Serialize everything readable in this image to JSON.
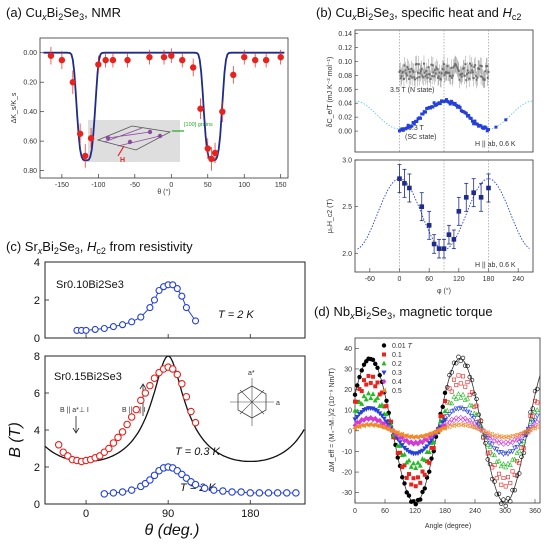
{
  "titles": {
    "a": {
      "pre": "(a) Cu",
      "sub": "x",
      "mid": "Bi",
      "sub2": "2",
      "mid2": "Se",
      "sub3": "3",
      "post": ", NMR"
    },
    "b": {
      "pre": "(b) Cu",
      "sub": "x",
      "mid": "Bi",
      "sub2": "2",
      "mid2": "Se",
      "sub3": "3",
      "post": ", specific heat and ",
      "it": "H",
      "sub4": "c2"
    },
    "c": {
      "pre": "(c) Sr",
      "sub": "x",
      "mid": "Bi",
      "sub2": "2",
      "mid2": "Se",
      "sub3": "3",
      "post": ", ",
      "it": "H",
      "sub4": "c2",
      "post2": " from resistivity"
    },
    "d": {
      "pre": "(d) Nb",
      "sub": "x",
      "mid": "Bi",
      "sub2": "2",
      "mid2": "Se",
      "sub3": "3",
      "post": ", magnetic torque"
    }
  },
  "annotations": {
    "a_ylabel": "ΔK_s/K_s",
    "a_xlabel": "θ (°)",
    "a_inset_label": "[100] grains",
    "a_inset_h": "H",
    "b1_ylabel": "δC_e/T (mJ K⁻² mol⁻¹)",
    "b1_ann_normal": "3.5 T (N state)",
    "b1_ann_sc1": "0.3 T",
    "b1_ann_sc2": "(SC state)",
    "b1_field": "H || ab, 0.6 K",
    "b2_ylabel": "μ₀H_c2 (T)",
    "b2_xlabel": "φ (°)",
    "b2_field": "H || ab, 0.6 K",
    "c1_sample": "Sr0.10Bi2Se3",
    "c1_temp": "T = 2 K",
    "c2_sample": "Sr0.15Bi2Se3",
    "c2_temp_red": "T = 0.3 K",
    "c2_temp_blue": "T = 2 K",
    "c2_perp": "B || a*⊥ I",
    "c2_par": "B || a|| I",
    "c2_astar": "a*",
    "c2_a": "a",
    "c_ylabel": "B (T)",
    "c_xlabel": "θ (deg.)",
    "d_ylabel": "ΔM_eff = (M₊−M₋)/2 (10⁻⁹ Nm/T)",
    "d_xlabel": "Angle (degree)",
    "d_legend_unit": "T"
  },
  "colors": {
    "red": "#e8221d",
    "navy": "#1e2b8a",
    "blue": "#2440d8",
    "gray": "#6b6b6b",
    "green": "#22bb22",
    "magenta": "#d23ad6",
    "orange": "#f08a28"
  },
  "chart_data": [
    {
      "id": "a",
      "type": "scatter",
      "xlabel": "θ (°)",
      "ylabel": "ΔK_s/K_s",
      "xlim": [
        -180,
        160
      ],
      "ylim": [
        0.85,
        -0.1
      ],
      "xticks": [
        -150,
        -100,
        -50,
        0,
        50,
        100,
        150
      ],
      "yticks": [
        0.0,
        0.2,
        0.4,
        0.6,
        0.8
      ],
      "ytick_labels": [
        "0.00",
        "0.20",
        "0.40",
        "0.60",
        "0.80"
      ],
      "points": {
        "x": [
          -165,
          -150,
          -135,
          -125,
          -118,
          -110,
          -100,
          -90,
          -80,
          -60,
          -30,
          -10,
          0,
          15,
          30,
          40,
          50,
          55,
          60,
          70,
          85,
          100,
          115,
          130,
          150
        ],
        "y": [
          0.02,
          0.05,
          0.2,
          0.55,
          0.7,
          0.58,
          0.08,
          0.05,
          0.05,
          0.05,
          0.03,
          0.03,
          0.02,
          0.05,
          0.1,
          0.38,
          0.65,
          0.72,
          0.68,
          0.4,
          0.15,
          0.03,
          0.05,
          0.05,
          0.03
        ],
        "err": [
          0.06,
          0.06,
          0.08,
          0.07,
          0.08,
          0.07,
          0.06,
          0.05,
          0.05,
          0.05,
          0.05,
          0.05,
          0.05,
          0.05,
          0.06,
          0.07,
          0.07,
          0.08,
          0.07,
          0.07,
          0.06,
          0.05,
          0.05,
          0.05,
          0.05
        ]
      },
      "fit_minima": [
        -117,
        57
      ],
      "fit_depth": 0.73
    },
    {
      "id": "b1",
      "type": "scatter",
      "ylabel": "δC_e/T (mJ K⁻² mol⁻¹)",
      "xlim": [
        -90,
        270
      ],
      "ylim": [
        -0.03,
        0.145
      ],
      "yticks": [
        0.0,
        0.02,
        0.04,
        0.06,
        0.08,
        0.1,
        0.12,
        0.14
      ],
      "series": [
        {
          "name": "3.5 T (N state)",
          "kind": "normal",
          "x_range": [
            0,
            180
          ],
          "mean": 0.085,
          "amp": 0.012
        },
        {
          "name": "0.3 T (SC state)",
          "kind": "sc",
          "x_range": [
            0,
            180
          ],
          "offset": 0.023,
          "amp": 0.02
        }
      ]
    },
    {
      "id": "b2",
      "type": "scatter",
      "xlabel": "φ (°)",
      "ylabel": "μ₀H_c2 (T)",
      "xlim": [
        -90,
        270
      ],
      "ylim": [
        1.8,
        3.0
      ],
      "xticks": [
        -60,
        0,
        60,
        120,
        180,
        240
      ],
      "yticks": [
        2.0,
        2.5,
        3.0
      ],
      "points": {
        "x": [
          0,
          10,
          20,
          45,
          60,
          70,
          80,
          90,
          100,
          110,
          120,
          135,
          150,
          165,
          180
        ],
        "y": [
          2.8,
          2.75,
          2.7,
          2.5,
          2.3,
          2.1,
          2.05,
          2.05,
          2.2,
          2.15,
          2.45,
          2.6,
          2.65,
          2.6,
          2.7
        ],
        "err": [
          0.15,
          0.15,
          0.15,
          0.15,
          0.15,
          0.1,
          0.1,
          0.1,
          0.1,
          0.1,
          0.15,
          0.15,
          0.15,
          0.15,
          0.15
        ]
      }
    },
    {
      "id": "c1",
      "type": "line",
      "ylabel": "",
      "xlim": [
        -45,
        240
      ],
      "ylim": [
        0,
        4
      ],
      "yticks": [
        0,
        2,
        4
      ],
      "series": [
        {
          "name": "T = 2 K",
          "x": [
            -10,
            -5,
            0,
            10,
            20,
            30,
            40,
            50,
            60,
            70,
            75,
            80,
            85,
            90,
            95,
            100,
            105,
            110,
            120
          ],
          "y": [
            0.4,
            0.4,
            0.4,
            0.45,
            0.5,
            0.6,
            0.7,
            0.85,
            1.1,
            1.6,
            2.0,
            2.5,
            2.7,
            2.8,
            2.8,
            2.6,
            2.2,
            1.6,
            0.9
          ]
        }
      ]
    },
    {
      "id": "c2",
      "type": "line",
      "xlabel": "θ (deg.)",
      "ylabel": "B (T)",
      "xlim": [
        -45,
        240
      ],
      "ylim": [
        0,
        8
      ],
      "xticks": [
        0,
        90,
        180
      ],
      "yticks": [
        0,
        2,
        4,
        6,
        8
      ],
      "series": [
        {
          "name": "T = 0.3 K",
          "x": [
            -30,
            -25,
            -20,
            -15,
            -10,
            -5,
            0,
            5,
            10,
            15,
            20,
            25,
            30,
            35,
            40,
            45,
            50,
            55,
            60,
            65,
            70,
            75,
            80,
            85,
            90,
            95,
            100,
            105,
            110,
            115,
            120
          ],
          "y": [
            3.2,
            2.8,
            2.6,
            2.4,
            2.35,
            2.3,
            2.35,
            2.4,
            2.5,
            2.6,
            2.8,
            3.0,
            3.3,
            3.6,
            3.9,
            4.3,
            4.7,
            5.1,
            5.6,
            6.0,
            6.4,
            6.8,
            7.1,
            7.3,
            7.4,
            7.3,
            7.0,
            6.5,
            5.8,
            5.0,
            4.4
          ]
        },
        {
          "name": "T = 2 K",
          "x": [
            20,
            30,
            40,
            50,
            60,
            65,
            70,
            75,
            80,
            85,
            90,
            95,
            100,
            105,
            110,
            115,
            120,
            130,
            140,
            150,
            160,
            170,
            180,
            190,
            200,
            210,
            220,
            230
          ],
          "y": [
            0.55,
            0.6,
            0.65,
            0.75,
            0.95,
            1.1,
            1.3,
            1.55,
            1.8,
            1.95,
            2.0,
            1.95,
            1.8,
            1.6,
            1.4,
            1.2,
            1.05,
            0.85,
            0.75,
            0.7,
            0.65,
            0.65,
            0.6,
            0.6,
            0.6,
            0.6,
            0.6,
            0.6
          ]
        }
      ],
      "fit_amp": 8.0,
      "fit_base": 2.3
    },
    {
      "id": "d",
      "type": "scatter",
      "xlabel": "Angle (degree)",
      "ylabel": "ΔM_eff = (M₊−M₋)/2 (10⁻⁹ Nm/T)",
      "xlim": [
        0,
        370
      ],
      "ylim": [
        -35,
        45
      ],
      "xticks": [
        0,
        60,
        120,
        180,
        240,
        300,
        360
      ],
      "yticks": [
        -30,
        -20,
        -10,
        0,
        10,
        20,
        30,
        40
      ],
      "series": [
        {
          "name": "0.01",
          "color": "#000000",
          "amp": 35,
          "marker": "filled"
        },
        {
          "name": "0.1",
          "color": "#e8221d",
          "amp": 25,
          "marker": "square"
        },
        {
          "name": "0.2",
          "color": "#22bb22",
          "amp": 17,
          "marker": "triangle"
        },
        {
          "name": "0.3",
          "color": "#2440d8",
          "amp": 11,
          "marker": "triangle-down"
        },
        {
          "name": "0.4",
          "color": "#d23ad6",
          "amp": 6,
          "marker": "diamond"
        },
        {
          "name": "0.5",
          "color": "#f08a28",
          "amp": 3,
          "marker": "triangle-left"
        }
      ]
    }
  ]
}
